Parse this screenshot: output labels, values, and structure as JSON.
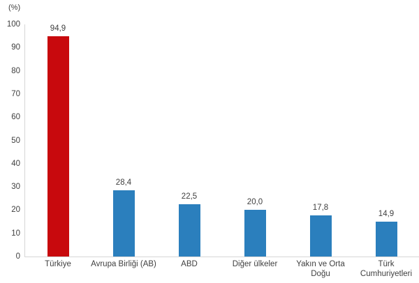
{
  "colors": {
    "highlight_bar": "#c8090d",
    "series_bar": "#2b7fbd",
    "axis_line": "#d6d6d6",
    "text": "#3f3f3f",
    "background": "#ffffff"
  },
  "chart_data": {
    "type": "bar",
    "title": "",
    "unit_label": "(%)",
    "categories": [
      "Türkiye",
      "Avrupa Birliği (AB)",
      "ABD",
      "Diğer ülkeler",
      "Yakın ve Orta Doğu",
      "Türk Cumhuriyetleri"
    ],
    "values": [
      94.9,
      28.4,
      22.5,
      20.0,
      17.8,
      14.9
    ],
    "value_labels": [
      "94,9",
      "28,4",
      "22,5",
      "20,0",
      "17,8",
      "14,9"
    ],
    "category_label_lines": [
      [
        "Türkiye"
      ],
      [
        "Avrupa Birliği (AB)"
      ],
      [
        "ABD"
      ],
      [
        "Diğer ülkeler"
      ],
      [
        "Yakın ve Orta",
        "Doğu"
      ],
      [
        "Türk",
        "Cumhuriyetleri"
      ]
    ],
    "bar_colors": [
      "#c8090d",
      "#2b7fbd",
      "#2b7fbd",
      "#2b7fbd",
      "#2b7fbd",
      "#2b7fbd"
    ],
    "xlabel": "",
    "ylabel": "(%)",
    "ylim": [
      0,
      100
    ],
    "ytick_step": 10,
    "ytick_labels": [
      "0",
      "10",
      "20",
      "30",
      "40",
      "50",
      "60",
      "70",
      "80",
      "90",
      "100"
    ],
    "grid": false,
    "legend": "none"
  }
}
